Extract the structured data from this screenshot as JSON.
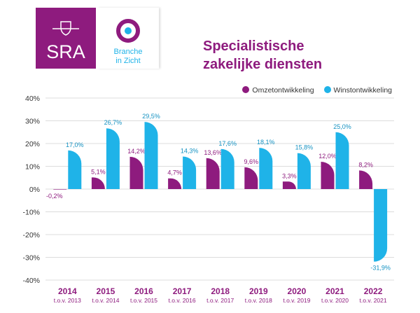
{
  "logos": {
    "sra": "SRA",
    "biz_line1": "Branche",
    "biz_line2": "in Zicht"
  },
  "colors": {
    "omzet": "#8e1b7e",
    "winst": "#1fb3e8",
    "axis_text": "#8e1b7e"
  },
  "chart_data": {
    "type": "bar",
    "title_line1": "Specialistische",
    "title_line2": "zakelijke diensten",
    "categories": [
      "2014",
      "2015",
      "2016",
      "2017",
      "2018",
      "2019",
      "2020",
      "2021",
      "2022"
    ],
    "subcategories": [
      "t.o.v. 2013",
      "t.o.v. 2014",
      "t.o.v. 2015",
      "t.o.v. 2016",
      "t.o.v. 2017",
      "t.o.v. 2018",
      "t.o.v. 2019",
      "t.o.v. 2020",
      "t.o.v. 2021"
    ],
    "series": [
      {
        "name": "Omzetontwikkeling",
        "values": [
          -0.2,
          5.1,
          14.2,
          4.7,
          13.6,
          9.6,
          3.3,
          12.0,
          8.2
        ],
        "labels": [
          "-0,2%",
          "5,1%",
          "14,2%",
          "4,7%",
          "13,6%",
          "9,6%",
          "3,3%",
          "12,0%",
          "8,2%"
        ]
      },
      {
        "name": "Winstontwikkeling",
        "values": [
          17.0,
          26.7,
          29.5,
          14.3,
          17.6,
          18.1,
          15.8,
          25.0,
          -31.9
        ],
        "labels": [
          "17,0%",
          "26,7%",
          "29,5%",
          "14,3%",
          "17,6%",
          "18,1%",
          "15,8%",
          "25,0%",
          "-31,9%"
        ]
      }
    ],
    "yticks": [
      40,
      30,
      20,
      10,
      0,
      -10,
      -20,
      -30,
      -40
    ],
    "ytick_labels": [
      "40%",
      "30%",
      "20%",
      "10%",
      "0%",
      "-10%",
      "-20%",
      "-30%",
      "-40%"
    ],
    "ylim": [
      -40,
      40
    ],
    "grid": true,
    "legend": "top-right"
  }
}
